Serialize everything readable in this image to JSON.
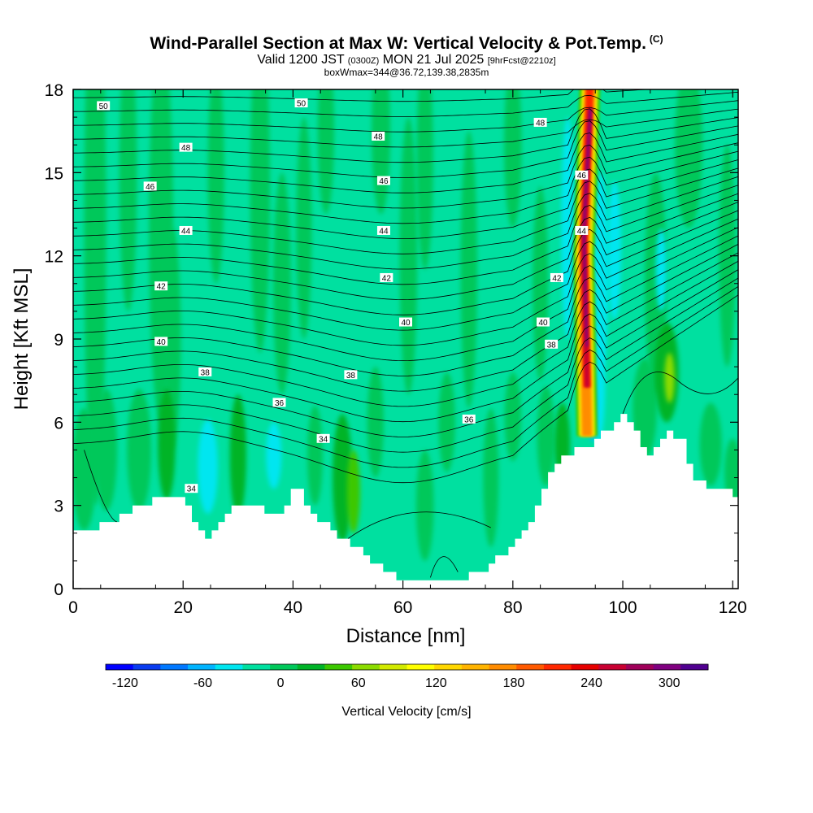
{
  "header": {
    "title": "Wind-Parallel Section at Max W: Vertical Velocity & Pot.Temp.",
    "title_mark": "(C)",
    "valid_prefix": "Valid 1200 JST",
    "valid_utc": "(0300Z)",
    "valid_date": "MON 21 Jul 2025",
    "forecast": "[9hrFcst@2210z]",
    "box_info": "boxWmax=344@36.72,139.38,2835m"
  },
  "colorbar": {
    "title": "Vertical Velocity [cm/s]",
    "ticks": [
      "-120",
      "-60",
      "0",
      "60",
      "120",
      "180",
      "240",
      "300"
    ],
    "tick_values": [
      -120,
      -60,
      0,
      60,
      120,
      180,
      240,
      300
    ],
    "min": -135,
    "max": 330,
    "colors": [
      "#0000ff",
      "#0a3cf0",
      "#0078ff",
      "#00b4ff",
      "#00e6f0",
      "#00e0a0",
      "#00c85a",
      "#00b428",
      "#3cc800",
      "#8cdc00",
      "#d2ea00",
      "#ffff00",
      "#ffd700",
      "#ffb400",
      "#ff8c00",
      "#ff5a00",
      "#ff2800",
      "#e60000",
      "#c80032",
      "#a0005a",
      "#800080",
      "#500090"
    ]
  },
  "chart_data": {
    "type": "heatmap",
    "xlabel": "Distance [nm]",
    "ylabel": "Height [Kft MSL]",
    "xlim": [
      0,
      121
    ],
    "ylim": [
      0,
      18
    ],
    "x_ticks": [
      0,
      20,
      40,
      60,
      80,
      100,
      120
    ],
    "y_ticks": [
      0,
      3,
      6,
      9,
      12,
      15,
      18
    ],
    "x_tick_labels": [
      "0",
      "20",
      "40",
      "60",
      "80",
      "100",
      "120"
    ],
    "y_tick_labels": [
      "0",
      "3",
      "6",
      "9",
      "12",
      "15",
      "18"
    ],
    "terrain_profile": [
      [
        0,
        2.0
      ],
      [
        5,
        2.3
      ],
      [
        10,
        2.8
      ],
      [
        15,
        3.3
      ],
      [
        20,
        3.3
      ],
      [
        22,
        2.3
      ],
      [
        24,
        1.7
      ],
      [
        27,
        2.7
      ],
      [
        30,
        3.0
      ],
      [
        34,
        2.9
      ],
      [
        37,
        2.6
      ],
      [
        40,
        3.7
      ],
      [
        43,
        2.8
      ],
      [
        47,
        2.0
      ],
      [
        52,
        1.3
      ],
      [
        55,
        0.8
      ],
      [
        59,
        0.3
      ],
      [
        66,
        0.3
      ],
      [
        73,
        0.5
      ],
      [
        78,
        1.3
      ],
      [
        82,
        2.1
      ],
      [
        85,
        3.6
      ],
      [
        88,
        4.8
      ],
      [
        93,
        5.1
      ],
      [
        96,
        5.6
      ],
      [
        100,
        6.3
      ],
      [
        102,
        5.6
      ],
      [
        104,
        4.7
      ],
      [
        107,
        5.6
      ],
      [
        110,
        5.5
      ],
      [
        113,
        3.8
      ],
      [
        118,
        3.6
      ],
      [
        121,
        3.3
      ]
    ],
    "vertical_velocity_max": 344,
    "updraft_core": {
      "distance_nm": 93.5,
      "height_range_kft": [
        5.5,
        18
      ],
      "max_cm_s": 300
    },
    "theta_contour_labels": [
      {
        "x": 5.5,
        "y": 17.4,
        "text": "50"
      },
      {
        "x": 41.5,
        "y": 17.5,
        "text": "50"
      },
      {
        "x": 20.5,
        "y": 15.9,
        "text": "48"
      },
      {
        "x": 55.5,
        "y": 16.3,
        "text": "48"
      },
      {
        "x": 85,
        "y": 16.8,
        "text": "48"
      },
      {
        "x": 14,
        "y": 14.5,
        "text": "46"
      },
      {
        "x": 56.5,
        "y": 14.7,
        "text": "46"
      },
      {
        "x": 92.5,
        "y": 14.9,
        "text": "46"
      },
      {
        "x": 20.5,
        "y": 12.9,
        "text": "44"
      },
      {
        "x": 56.5,
        "y": 12.9,
        "text": "44"
      },
      {
        "x": 92.5,
        "y": 12.9,
        "text": "44"
      },
      {
        "x": 16,
        "y": 10.9,
        "text": "42"
      },
      {
        "x": 57,
        "y": 11.2,
        "text": "42"
      },
      {
        "x": 88,
        "y": 11.2,
        "text": "42"
      },
      {
        "x": 16,
        "y": 8.9,
        "text": "40"
      },
      {
        "x": 60.5,
        "y": 9.6,
        "text": "40"
      },
      {
        "x": 85.5,
        "y": 9.6,
        "text": "40"
      },
      {
        "x": 24,
        "y": 7.8,
        "text": "38"
      },
      {
        "x": 50.5,
        "y": 7.7,
        "text": "38"
      },
      {
        "x": 87,
        "y": 8.8,
        "text": "38"
      },
      {
        "x": 37.5,
        "y": 6.7,
        "text": "36"
      },
      {
        "x": 72,
        "y": 6.1,
        "text": "36"
      },
      {
        "x": 45.5,
        "y": 5.4,
        "text": "34"
      },
      {
        "x": 21.5,
        "y": 3.6,
        "text": "34"
      }
    ]
  }
}
